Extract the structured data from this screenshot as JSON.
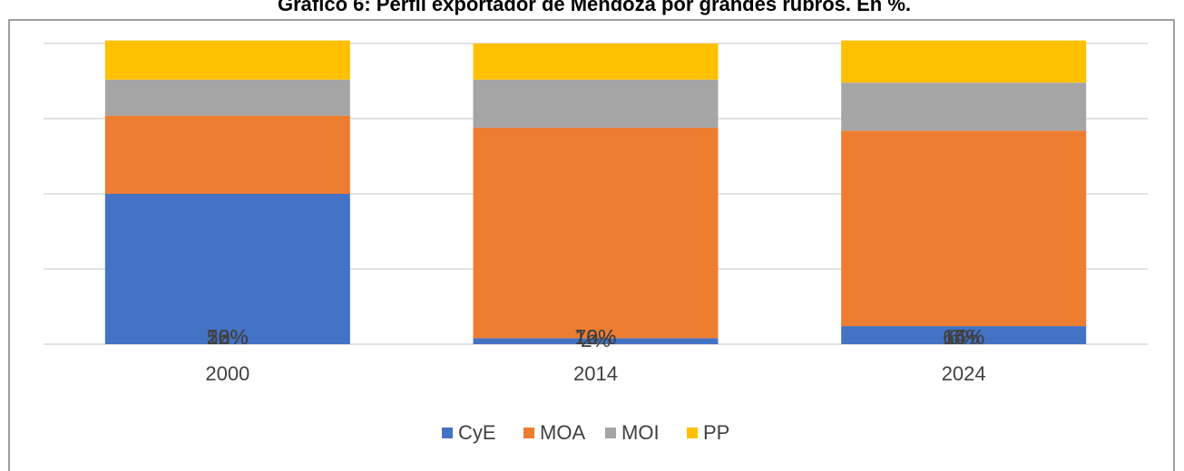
{
  "chart_data": {
    "type": "stacked_bar",
    "title": "Gráfico 6: Perfil exportador de Mendoza por grandes rubros. En %.",
    "categories": [
      "2000",
      "2014",
      "2024"
    ],
    "series": [
      {
        "name": "CyE",
        "color": "#4472c4",
        "values": [
          50,
          2,
          6
        ],
        "value_labels": [
          "50%",
          "2%",
          "6%"
        ]
      },
      {
        "name": "MOA",
        "color": "#ed7d31",
        "values": [
          26,
          70,
          65
        ],
        "value_labels": [
          "26%",
          "70%",
          "65%"
        ]
      },
      {
        "name": "MOI",
        "color": "#a5a5a5",
        "values": [
          12,
          16,
          16
        ],
        "value_labels": [
          "12%",
          "16%",
          "16%"
        ]
      },
      {
        "name": "PP",
        "color": "#ffc000",
        "values": [
          13,
          12,
          14
        ],
        "value_labels": [
          "13%",
          "12%",
          "14%"
        ]
      }
    ],
    "ylim": [
      0,
      100
    ],
    "yticks": [
      0,
      25,
      50,
      75,
      100
    ],
    "grid": true
  }
}
